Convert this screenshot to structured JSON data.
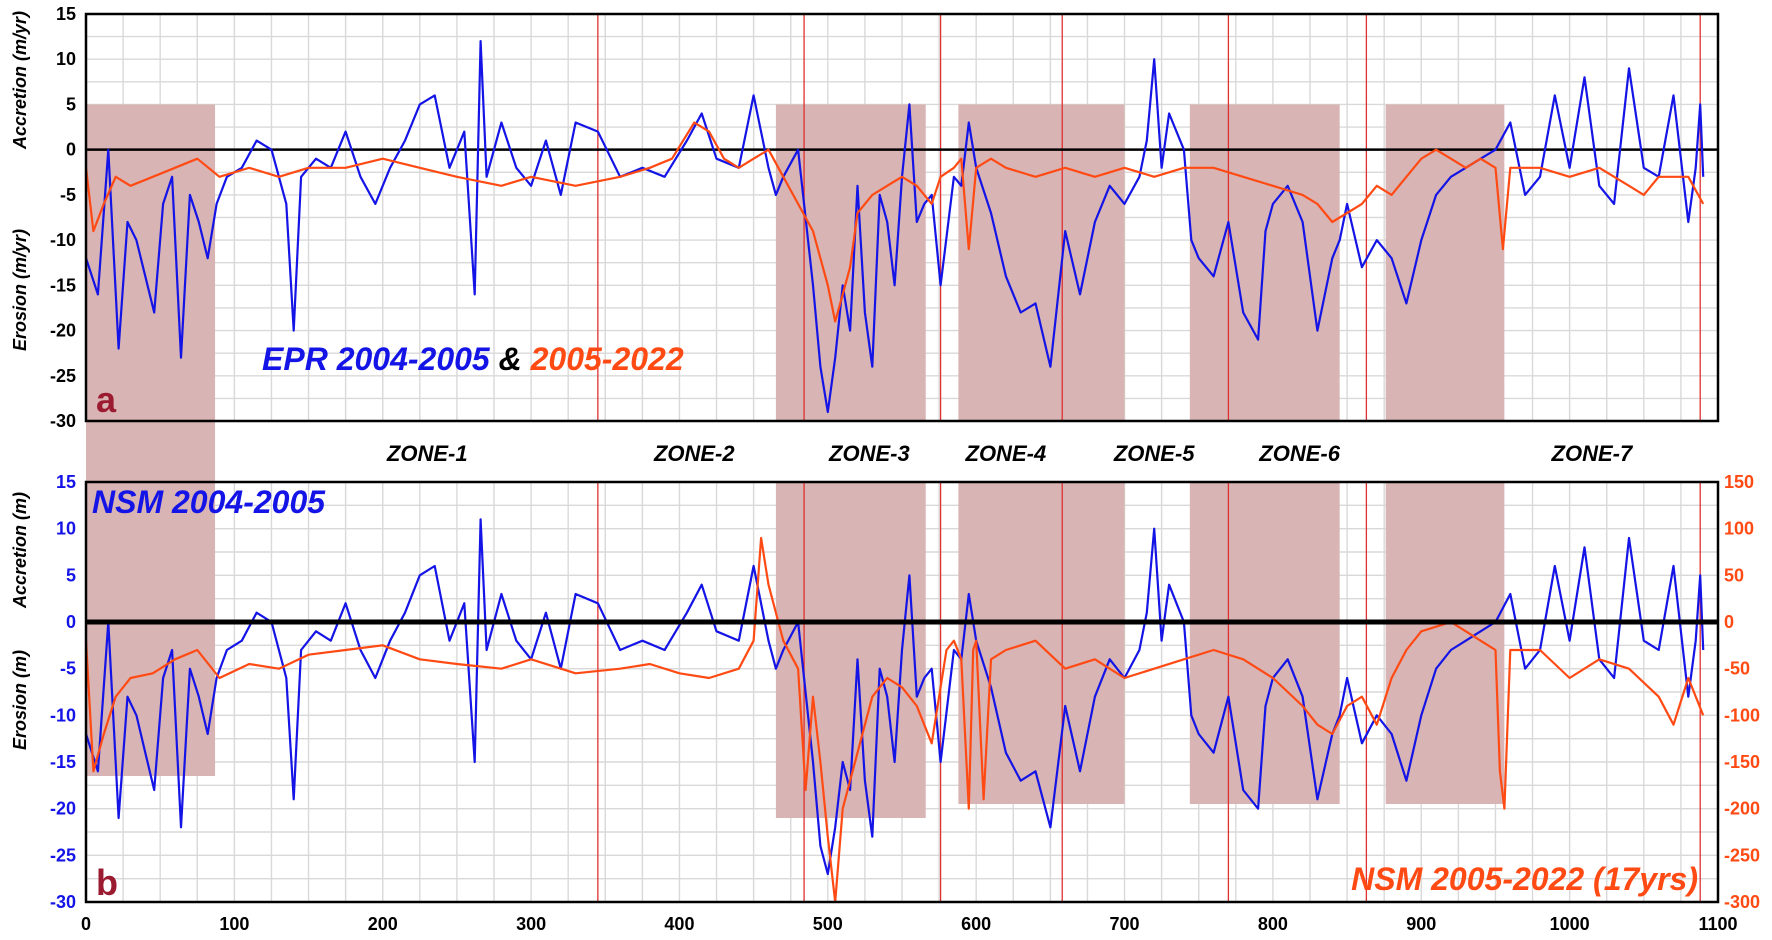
{
  "colors": {
    "blue": "#1414e6",
    "orange": "#ff4a14",
    "red": "#e03030",
    "shade": "#d9b4b4",
    "grid": "#d9d9d9",
    "label_red": "#9b1b30"
  },
  "chart_data": [
    {
      "type": "line",
      "panel_label": "a",
      "xlim": [
        0,
        1100
      ],
      "ylim": [
        -30,
        15
      ],
      "yticks": [
        15,
        10,
        5,
        0,
        -5,
        -10,
        -15,
        -20,
        -25,
        -30
      ],
      "ylabel_upper": "Accretion (m/yr)",
      "ylabel_lower": "Erosion (m/yr)",
      "legend": {
        "part1": "EPR 2004-2005",
        "part2": " & ",
        "part3": "2005-2022"
      },
      "series": [
        {
          "name": "EPR 2004-2005",
          "color": "#1414e6",
          "x": [
            0,
            8,
            15,
            22,
            28,
            34,
            40,
            46,
            52,
            58,
            64,
            70,
            76,
            82,
            88,
            95,
            105,
            115,
            125,
            135,
            140,
            145,
            155,
            165,
            175,
            185,
            195,
            205,
            215,
            225,
            235,
            245,
            255,
            262,
            266,
            270,
            280,
            290,
            300,
            310,
            320,
            330,
            345,
            360,
            375,
            390,
            405,
            415,
            425,
            440,
            450,
            460,
            465,
            470,
            480,
            490,
            495,
            500,
            505,
            510,
            515,
            520,
            525,
            530,
            535,
            540,
            545,
            550,
            555,
            560,
            565,
            570,
            576,
            585,
            590,
            595,
            600,
            610,
            620,
            630,
            640,
            650,
            660,
            670,
            680,
            690,
            700,
            710,
            715,
            720,
            725,
            730,
            740,
            745,
            750,
            760,
            770,
            780,
            790,
            795,
            800,
            810,
            820,
            830,
            840,
            845,
            850,
            860,
            870,
            880,
            890,
            900,
            910,
            920,
            930,
            940,
            950,
            960,
            970,
            980,
            990,
            1000,
            1010,
            1020,
            1030,
            1040,
            1050,
            1060,
            1070,
            1080,
            1085,
            1088,
            1090
          ],
          "y": [
            -12,
            -16,
            0,
            -22,
            -8,
            -10,
            -14,
            -18,
            -6,
            -3,
            -23,
            -5,
            -8,
            -12,
            -6,
            -3,
            -2,
            1,
            0,
            -6,
            -20,
            -3,
            -1,
            -2,
            2,
            -3,
            -6,
            -2,
            1,
            5,
            6,
            -2,
            2,
            -16,
            12,
            -3,
            3,
            -2,
            -4,
            1,
            -5,
            3,
            2,
            -3,
            -2,
            -3,
            1,
            4,
            -1,
            -2,
            6,
            -2,
            -5,
            -3,
            0,
            -15,
            -24,
            -29,
            -23,
            -15,
            -20,
            -4,
            -18,
            -24,
            -5,
            -8,
            -15,
            -3,
            5,
            -8,
            -6,
            -5,
            -15,
            -3,
            -4,
            3,
            -2,
            -7,
            -14,
            -18,
            -17,
            -24,
            -9,
            -16,
            -8,
            -4,
            -6,
            -3,
            1,
            10,
            -2,
            4,
            0,
            -10,
            -12,
            -14,
            -8,
            -18,
            -21,
            -9,
            -6,
            -4,
            -8,
            -20,
            -12,
            -10,
            -6,
            -13,
            -10,
            -12,
            -17,
            -10,
            -5,
            -3,
            -2,
            -1,
            0,
            3,
            -5,
            -3,
            6,
            -2,
            8,
            -4,
            -6,
            9,
            -2,
            -3,
            6,
            -8,
            -2,
            5,
            -3
          ]
        },
        {
          "name": "2005-2022",
          "color": "#ff4a14",
          "x": [
            0,
            5,
            12,
            20,
            30,
            45,
            60,
            75,
            90,
            110,
            130,
            150,
            175,
            200,
            225,
            250,
            280,
            300,
            330,
            360,
            380,
            395,
            410,
            420,
            430,
            440,
            450,
            460,
            470,
            480,
            490,
            500,
            505,
            510,
            515,
            520,
            530,
            540,
            550,
            560,
            570,
            576,
            585,
            590,
            595,
            600,
            610,
            620,
            640,
            660,
            680,
            700,
            720,
            740,
            760,
            780,
            800,
            820,
            830,
            840,
            850,
            860,
            870,
            880,
            890,
            900,
            910,
            920,
            930,
            940,
            950,
            955,
            960,
            980,
            1000,
            1020,
            1040,
            1050,
            1060,
            1070,
            1080,
            1090
          ],
          "y": [
            -2,
            -9,
            -6,
            -3,
            -4,
            -3,
            -2,
            -1,
            -3,
            -2,
            -3,
            -2,
            -2,
            -1,
            -2,
            -3,
            -4,
            -3,
            -4,
            -3,
            -2,
            -1,
            3,
            2,
            -1,
            -2,
            -1,
            0,
            -3,
            -6,
            -9,
            -15,
            -19,
            -16,
            -13,
            -7,
            -5,
            -4,
            -3,
            -4,
            -6,
            -3,
            -2,
            -1,
            -11,
            -2,
            -1,
            -2,
            -3,
            -2,
            -3,
            -2,
            -3,
            -2,
            -2,
            -3,
            -4,
            -5,
            -6,
            -8,
            -7,
            -6,
            -4,
            -5,
            -3,
            -1,
            0,
            -1,
            -2,
            -1,
            -2,
            -11,
            -2,
            -2,
            -3,
            -2,
            -4,
            -5,
            -3,
            -3,
            -3,
            -6
          ]
        }
      ]
    },
    {
      "type": "line",
      "panel_label": "b",
      "xlim": [
        0,
        1100
      ],
      "ylim_left": [
        -30,
        15
      ],
      "ylim_right": [
        -300,
        150
      ],
      "xticks": [
        0,
        100,
        200,
        300,
        400,
        500,
        600,
        700,
        800,
        900,
        1000,
        1100
      ],
      "yticks_left": [
        15,
        10,
        5,
        0,
        -5,
        -10,
        -15,
        -20,
        -25,
        -30
      ],
      "yticks_right": [
        150,
        100,
        50,
        0,
        -50,
        -100,
        -150,
        -200,
        -250,
        -300
      ],
      "ylabel_upper": "Accretion (m)",
      "ylabel_lower": "Erosion (m)",
      "series": [
        {
          "name": "NSM 2004-2005",
          "color": "#1414e6",
          "axis": "left",
          "x": [
            0,
            8,
            15,
            22,
            28,
            34,
            40,
            46,
            52,
            58,
            64,
            70,
            76,
            82,
            88,
            95,
            105,
            115,
            125,
            135,
            140,
            145,
            155,
            165,
            175,
            185,
            195,
            205,
            215,
            225,
            235,
            245,
            255,
            262,
            266,
            270,
            280,
            290,
            300,
            310,
            320,
            330,
            345,
            360,
            375,
            390,
            405,
            415,
            425,
            440,
            450,
            460,
            465,
            470,
            480,
            490,
            495,
            500,
            505,
            510,
            515,
            520,
            525,
            530,
            535,
            540,
            545,
            550,
            555,
            560,
            565,
            570,
            576,
            585,
            590,
            595,
            600,
            610,
            620,
            630,
            640,
            650,
            660,
            670,
            680,
            690,
            700,
            710,
            715,
            720,
            725,
            730,
            740,
            745,
            750,
            760,
            770,
            780,
            790,
            795,
            800,
            810,
            820,
            830,
            840,
            845,
            850,
            860,
            870,
            880,
            890,
            900,
            910,
            920,
            930,
            940,
            950,
            960,
            970,
            980,
            990,
            1000,
            1010,
            1020,
            1030,
            1040,
            1050,
            1060,
            1070,
            1080,
            1085,
            1088,
            1090
          ],
          "y": [
            -12,
            -16,
            0,
            -21,
            -8,
            -10,
            -14,
            -18,
            -6,
            -3,
            -22,
            -5,
            -8,
            -12,
            -6,
            -3,
            -2,
            1,
            0,
            -6,
            -19,
            -3,
            -1,
            -2,
            2,
            -3,
            -6,
            -2,
            1,
            5,
            6,
            -2,
            2,
            -15,
            11,
            -3,
            3,
            -2,
            -4,
            1,
            -5,
            3,
            2,
            -3,
            -2,
            -3,
            1,
            4,
            -1,
            -2,
            6,
            -2,
            -5,
            -3,
            0,
            -15,
            -24,
            -27,
            -22,
            -15,
            -18,
            -4,
            -17,
            -23,
            -5,
            -8,
            -15,
            -3,
            5,
            -8,
            -6,
            -5,
            -15,
            -3,
            -4,
            3,
            -2,
            -7,
            -14,
            -17,
            -16,
            -22,
            -9,
            -16,
            -8,
            -4,
            -6,
            -3,
            1,
            10,
            -2,
            4,
            0,
            -10,
            -12,
            -14,
            -8,
            -18,
            -20,
            -9,
            -6,
            -4,
            -8,
            -19,
            -12,
            -10,
            -6,
            -13,
            -10,
            -12,
            -17,
            -10,
            -5,
            -3,
            -2,
            -1,
            0,
            3,
            -5,
            -3,
            6,
            -2,
            8,
            -4,
            -6,
            9,
            -2,
            -3,
            6,
            -8,
            -2,
            5,
            -3
          ]
        },
        {
          "name": "NSM 2005-2022 (17yrs)",
          "color": "#ff4a14",
          "axis": "right",
          "x": [
            0,
            5,
            12,
            20,
            30,
            45,
            60,
            75,
            90,
            110,
            130,
            150,
            175,
            200,
            225,
            250,
            280,
            300,
            330,
            360,
            380,
            400,
            420,
            440,
            450,
            455,
            460,
            470,
            480,
            485,
            490,
            495,
            500,
            505,
            510,
            520,
            530,
            540,
            550,
            560,
            570,
            580,
            585,
            590,
            595,
            598,
            600,
            605,
            610,
            620,
            640,
            660,
            680,
            700,
            720,
            740,
            760,
            780,
            800,
            820,
            830,
            840,
            850,
            860,
            870,
            880,
            890,
            900,
            910,
            920,
            930,
            940,
            950,
            953,
            956,
            960,
            980,
            1000,
            1020,
            1040,
            1060,
            1070,
            1080,
            1090
          ],
          "y": [
            -20,
            -160,
            -120,
            -80,
            -60,
            -55,
            -40,
            -30,
            -60,
            -45,
            -50,
            -35,
            -30,
            -25,
            -40,
            -45,
            -50,
            -40,
            -55,
            -50,
            -45,
            -55,
            -60,
            -50,
            -20,
            90,
            40,
            -20,
            -50,
            -180,
            -80,
            -150,
            -230,
            -300,
            -200,
            -140,
            -80,
            -60,
            -70,
            -90,
            -130,
            -30,
            -20,
            -40,
            -200,
            -30,
            -20,
            -190,
            -40,
            -30,
            -20,
            -50,
            -40,
            -60,
            -50,
            -40,
            -30,
            -40,
            -60,
            -90,
            -110,
            -120,
            -90,
            -80,
            -110,
            -60,
            -30,
            -10,
            -5,
            0,
            -10,
            -20,
            -30,
            -160,
            -200,
            -30,
            -30,
            -60,
            -40,
            -50,
            -80,
            -110,
            -60,
            -100
          ]
        }
      ]
    }
  ],
  "zones": [
    {
      "label": "ZONE-1",
      "center": 230
    },
    {
      "label": "ZONE-2",
      "center": 410
    },
    {
      "label": "ZONE-3",
      "center": 528
    },
    {
      "label": "ZONE-4",
      "center": 620
    },
    {
      "label": "ZONE-5",
      "center": 720
    },
    {
      "label": "ZONE-6",
      "center": 818
    },
    {
      "label": "ZONE-7",
      "center": 1015
    }
  ],
  "zone_boundaries": [
    345,
    484,
    576,
    658,
    770,
    863,
    1088
  ],
  "shaded_regions": [
    {
      "x0": 0,
      "x1": 87,
      "a_top": 5,
      "a_bot": -30,
      "b_top": 15,
      "b_bot": -16.5
    },
    {
      "x0": 465,
      "x1": 566,
      "a_top": 5,
      "a_bot": -30,
      "b_top": 15,
      "b_bot": -21
    },
    {
      "x0": 588,
      "x1": 700,
      "a_top": 5,
      "a_bot": -30,
      "b_top": 15,
      "b_bot": -19.5
    },
    {
      "x0": 744,
      "x1": 845,
      "a_top": 5,
      "a_bot": -30,
      "b_top": 15,
      "b_bot": -19.5
    },
    {
      "x0": 876,
      "x1": 956,
      "a_top": 5,
      "a_bot": -30,
      "b_top": 15,
      "b_bot": -19.5
    }
  ]
}
